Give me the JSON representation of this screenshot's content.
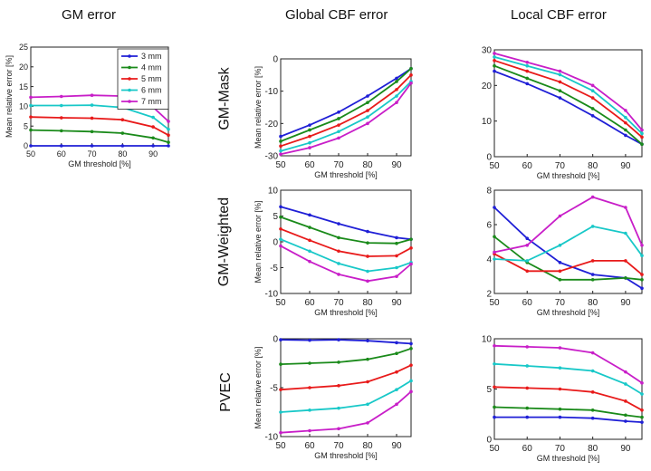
{
  "column_titles": [
    "GM error",
    "Global CBF error",
    "Local CBF error"
  ],
  "row_titles": [
    "GM-Mask",
    "GM-Weighted",
    "PVEC"
  ],
  "colors": {
    "3 mm": "#1f1fd6",
    "4 mm": "#1a8a1a",
    "5 mm": "#e81a1a",
    "6 mm": "#18c8c8",
    "7 mm": "#c81ec8"
  },
  "chart_data": [
    {
      "id": "gm-error",
      "type": "line",
      "xlabel": "GM threshold [%]",
      "ylabel": "Mean relative error [%]",
      "x": [
        50,
        60,
        70,
        80,
        90,
        95
      ],
      "xticks": [
        50,
        60,
        70,
        80,
        90
      ],
      "xlim": [
        50,
        95
      ],
      "ylim": [
        0,
        25
      ],
      "yticks": [
        0,
        5,
        10,
        15,
        20,
        25
      ],
      "legend": "top-right",
      "series": [
        {
          "name": "3 mm",
          "values": [
            0,
            0,
            0,
            0,
            0,
            0
          ]
        },
        {
          "name": "4 mm",
          "values": [
            4.0,
            3.8,
            3.6,
            3.2,
            2.0,
            0.9
          ]
        },
        {
          "name": "5 mm",
          "values": [
            7.3,
            7.1,
            7.0,
            6.6,
            4.8,
            2.7
          ]
        },
        {
          "name": "6 mm",
          "values": [
            10.2,
            10.2,
            10.3,
            9.7,
            7.2,
            4.2
          ]
        },
        {
          "name": "7 mm",
          "values": [
            12.3,
            12.5,
            12.8,
            12.6,
            9.8,
            6.2
          ]
        }
      ]
    },
    {
      "id": "global-gm-mask",
      "type": "line",
      "xlabel": "GM threshold [%]",
      "ylabel": "Mean relative error [%]",
      "x": [
        50,
        60,
        70,
        80,
        90,
        95
      ],
      "xticks": [
        50,
        60,
        70,
        80,
        90
      ],
      "xlim": [
        50,
        95
      ],
      "ylim": [
        -30,
        0
      ],
      "yticks": [
        -30,
        -20,
        -10,
        0
      ],
      "series": [
        {
          "name": "3 mm",
          "values": [
            -24,
            -20.5,
            -16.5,
            -11.5,
            -6,
            -3
          ]
        },
        {
          "name": "4 mm",
          "values": [
            -25.5,
            -22,
            -18.5,
            -13.5,
            -7,
            -3
          ]
        },
        {
          "name": "5 mm",
          "values": [
            -27,
            -24,
            -20.5,
            -16,
            -9.5,
            -5
          ]
        },
        {
          "name": "6 mm",
          "values": [
            -28.5,
            -26,
            -22.5,
            -18,
            -11.5,
            -7
          ]
        },
        {
          "name": "7 mm",
          "values": [
            -29.5,
            -27.5,
            -24.5,
            -20,
            -13.5,
            -7.5
          ]
        }
      ]
    },
    {
      "id": "local-gm-mask",
      "type": "line",
      "xlabel": "GM threshold [%]",
      "ylabel": "",
      "x": [
        50,
        60,
        70,
        80,
        90,
        95
      ],
      "xticks": [
        50,
        60,
        70,
        80,
        90
      ],
      "xlim": [
        50,
        95
      ],
      "ylim": [
        0,
        30
      ],
      "yticks": [
        0,
        10,
        20,
        30
      ],
      "series": [
        {
          "name": "3 mm",
          "values": [
            24,
            20.5,
            16.5,
            11.5,
            6,
            3.5
          ]
        },
        {
          "name": "4 mm",
          "values": [
            25.5,
            22,
            18.5,
            13.5,
            7.5,
            3.5
          ]
        },
        {
          "name": "5 mm",
          "values": [
            27,
            24,
            21,
            16.5,
            9.5,
            5.5
          ]
        },
        {
          "name": "6 mm",
          "values": [
            28,
            25.5,
            23,
            18.5,
            11,
            6.5
          ]
        },
        {
          "name": "7 mm",
          "values": [
            29,
            26.5,
            24,
            20,
            13,
            7.5
          ]
        }
      ]
    },
    {
      "id": "global-gm-weighted",
      "type": "line",
      "xlabel": "GM threshold [%]",
      "ylabel": "Mean relative error [%]",
      "x": [
        50,
        60,
        70,
        80,
        90,
        95
      ],
      "xticks": [
        50,
        60,
        70,
        80,
        90
      ],
      "xlim": [
        50,
        95
      ],
      "ylim": [
        -10,
        10
      ],
      "yticks": [
        -10,
        -5,
        0,
        5,
        10
      ],
      "series": [
        {
          "name": "3 mm",
          "values": [
            6.8,
            5.2,
            3.5,
            2.0,
            0.8,
            0.5
          ]
        },
        {
          "name": "4 mm",
          "values": [
            4.8,
            2.8,
            0.8,
            -0.2,
            -0.3,
            0.5
          ]
        },
        {
          "name": "5 mm",
          "values": [
            2.5,
            0.3,
            -1.8,
            -2.8,
            -2.7,
            -1.2
          ]
        },
        {
          "name": "6 mm",
          "values": [
            0.5,
            -1.8,
            -4.2,
            -5.7,
            -5.0,
            -4.0
          ]
        },
        {
          "name": "7 mm",
          "values": [
            -0.8,
            -3.8,
            -6.3,
            -7.6,
            -6.7,
            -4.3
          ]
        }
      ]
    },
    {
      "id": "local-gm-weighted",
      "type": "line",
      "xlabel": "GM threshold [%]",
      "ylabel": "",
      "x": [
        50,
        60,
        70,
        80,
        90,
        95
      ],
      "xticks": [
        50,
        60,
        70,
        80,
        90
      ],
      "xlim": [
        50,
        95
      ],
      "ylim": [
        2,
        8
      ],
      "yticks": [
        2,
        4,
        6,
        8
      ],
      "series": [
        {
          "name": "3 mm",
          "values": [
            7.0,
            5.2,
            3.8,
            3.1,
            2.9,
            2.3
          ]
        },
        {
          "name": "4 mm",
          "values": [
            5.3,
            3.8,
            2.8,
            2.8,
            2.9,
            2.8
          ]
        },
        {
          "name": "5 mm",
          "values": [
            4.3,
            3.3,
            3.3,
            3.9,
            3.9,
            3.1
          ]
        },
        {
          "name": "6 mm",
          "values": [
            4.0,
            3.9,
            4.8,
            5.9,
            5.5,
            4.2
          ]
        },
        {
          "name": "7 mm",
          "values": [
            4.4,
            4.8,
            6.5,
            7.6,
            7.0,
            4.8
          ]
        }
      ]
    },
    {
      "id": "global-pvec",
      "type": "line",
      "xlabel": "GM threshold [%]",
      "ylabel": "Mean relative error [%]",
      "x": [
        50,
        60,
        70,
        80,
        90,
        95
      ],
      "xticks": [
        50,
        60,
        70,
        80,
        90
      ],
      "xlim": [
        50,
        95
      ],
      "ylim": [
        -10,
        0
      ],
      "yticks": [
        -10,
        -5,
        0
      ],
      "series": [
        {
          "name": "3 mm",
          "values": [
            -0.1,
            -0.15,
            -0.1,
            -0.2,
            -0.4,
            -0.5
          ]
        },
        {
          "name": "4 mm",
          "values": [
            -2.6,
            -2.5,
            -2.4,
            -2.1,
            -1.5,
            -1.0
          ]
        },
        {
          "name": "5 mm",
          "values": [
            -5.2,
            -5.0,
            -4.8,
            -4.4,
            -3.4,
            -2.7
          ]
        },
        {
          "name": "6 mm",
          "values": [
            -7.5,
            -7.3,
            -7.1,
            -6.7,
            -5.2,
            -4.3
          ]
        },
        {
          "name": "7 mm",
          "values": [
            -9.6,
            -9.4,
            -9.2,
            -8.6,
            -6.7,
            -5.4
          ]
        }
      ]
    },
    {
      "id": "local-pvec",
      "type": "line",
      "xlabel": "GM threshold [%]",
      "ylabel": "",
      "x": [
        50,
        60,
        70,
        80,
        90,
        95
      ],
      "xticks": [
        50,
        60,
        70,
        80,
        90
      ],
      "xlim": [
        50,
        95
      ],
      "ylim": [
        0,
        10
      ],
      "yticks": [
        0,
        5,
        10
      ],
      "series": [
        {
          "name": "3 mm",
          "values": [
            2.2,
            2.2,
            2.2,
            2.1,
            1.8,
            1.7
          ]
        },
        {
          "name": "4 mm",
          "values": [
            3.2,
            3.1,
            3.0,
            2.9,
            2.4,
            2.2
          ]
        },
        {
          "name": "5 mm",
          "values": [
            5.2,
            5.1,
            5.0,
            4.7,
            3.8,
            2.9
          ]
        },
        {
          "name": "6 mm",
          "values": [
            7.5,
            7.3,
            7.1,
            6.8,
            5.5,
            4.5
          ]
        },
        {
          "name": "7 mm",
          "values": [
            9.3,
            9.2,
            9.1,
            8.6,
            6.7,
            5.6
          ]
        }
      ]
    }
  ]
}
